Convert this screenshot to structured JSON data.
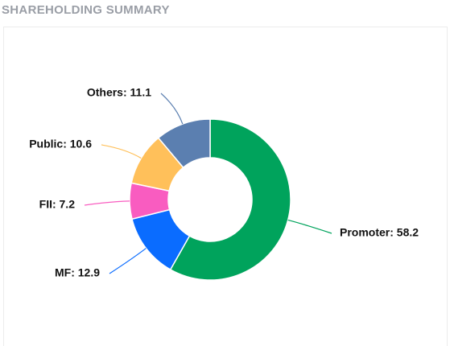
{
  "chart_data": {
    "type": "donut",
    "title": "SHAREHOLDING SUMMARY",
    "values": [
      58.2,
      12.9,
      7.2,
      10.6,
      11.1
    ],
    "value_labels": [
      "Promoter: 58.2",
      "MF: 12.9",
      "FII: 7.2",
      "Public: 10.6",
      "Others: 11.1"
    ],
    "colors": [
      "#00a35c",
      "#0a6cff",
      "#f95cc0",
      "#ffc05a",
      "#5b7fb0"
    ]
  }
}
